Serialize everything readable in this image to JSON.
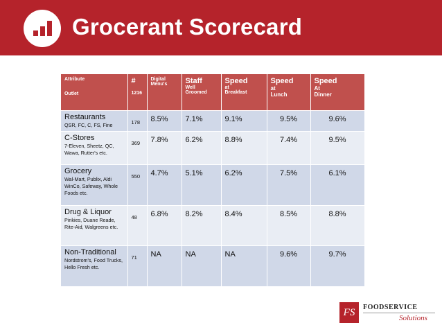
{
  "header": {
    "title": "Grocerant Scorecard",
    "logo_icon": "bar-chart-icon",
    "banner_color": "#b5232b"
  },
  "table": {
    "columns": {
      "attribute_label": "Attribute",
      "outlet_label": "Outlet",
      "count_label": "#",
      "count_total": "1216",
      "digital_line1": "Digital",
      "digital_line2": "Menu's",
      "staff_line1": "Staff",
      "staff_line2": "Well",
      "staff_line3": "Groomed",
      "breakfast_line1": "Speed",
      "breakfast_line2": "at",
      "breakfast_line3": "Breakfast",
      "lunch_line1": "Speed",
      "lunch_line2": "at",
      "lunch_line3": "Lunch",
      "dinner_line1": "Speed",
      "dinner_line2": "At",
      "dinner_line3": "Dinner"
    },
    "rows": [
      {
        "category": "Restaurants",
        "examples": "QSR, FC, C, FS, Fine",
        "count": "178",
        "digital": "8.5%",
        "staff": "7.1%",
        "breakfast": "9.1%",
        "lunch": "9.5%",
        "dinner": "9.6%"
      },
      {
        "category": "C-Stores",
        "examples": "7-Eleven, Sheetz, QC, Wawa, Rutter's etc.",
        "count": "369",
        "digital": "7.8%",
        "staff": "6.2%",
        "breakfast": "8.8%",
        "lunch": "7.4%",
        "dinner": "9.5%"
      },
      {
        "category": "Grocery",
        "examples": "Wal-Mart, Publix, Aldi WinCo, Safeway, Whole Foods etc.",
        "count": "550",
        "digital": "4.7%",
        "staff": "5.1%",
        "breakfast": "6.2%",
        "lunch": "7.5%",
        "dinner": "6.1%"
      },
      {
        "category": "Drug & Liquor",
        "examples": "Pinkies, Duane Reade, Rite-Aid, Walgreens etc.",
        "count": "48",
        "digital": "6.8%",
        "staff": "8.2%",
        "breakfast": "8.4%",
        "lunch": "8.5%",
        "dinner": "8.8%"
      },
      {
        "category": "Non-Traditional",
        "examples": "Nordstrom's, Food Trucks, Hello Fresh etc.",
        "count": "71",
        "digital": "NA",
        "staff": "NA",
        "breakfast": "NA",
        "lunch": "9.6%",
        "dinner": "9.7%"
      }
    ]
  },
  "footer": {
    "brand_mark": "FS",
    "brand_line1": "FOODSERVICE",
    "brand_line2": "Solutions"
  }
}
